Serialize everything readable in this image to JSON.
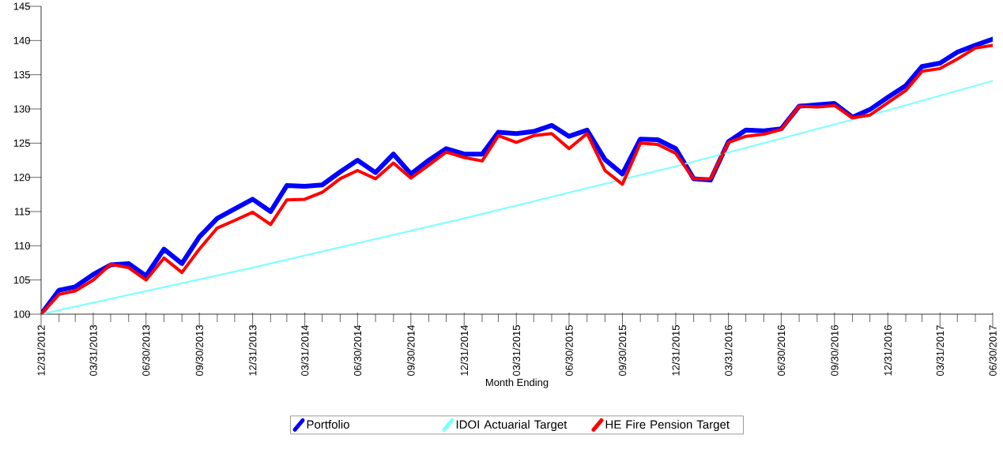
{
  "chart_data": {
    "type": "line",
    "xlabel": "Month Ending",
    "x": [
      "2012-12-31",
      "2013-01-31",
      "2013-02-28",
      "2013-03-31",
      "2013-04-30",
      "2013-05-31",
      "2013-06-30",
      "2013-07-31",
      "2013-08-31",
      "2013-09-30",
      "2013-10-31",
      "2013-11-30",
      "2013-12-31",
      "2014-01-31",
      "2014-02-28",
      "2014-03-31",
      "2014-04-30",
      "2014-05-31",
      "2014-06-30",
      "2014-07-31",
      "2014-08-31",
      "2014-09-30",
      "2014-10-31",
      "2014-11-30",
      "2014-12-31",
      "2015-01-31",
      "2015-02-28",
      "2015-03-31",
      "2015-04-30",
      "2015-05-31",
      "2015-06-30",
      "2015-07-31",
      "2015-08-31",
      "2015-09-30",
      "2015-10-31",
      "2015-11-30",
      "2015-12-31",
      "2016-01-31",
      "2016-02-29",
      "2016-03-31",
      "2016-04-30",
      "2016-05-31",
      "2016-06-30",
      "2016-07-31",
      "2016-08-31",
      "2016-09-30",
      "2016-10-31",
      "2016-11-30",
      "2016-12-31",
      "2017-01-31",
      "2017-02-28",
      "2017-03-31",
      "2017-04-30",
      "2017-05-31",
      "2017-06-30"
    ],
    "series": [
      {
        "name": "Portfolio",
        "color": "#0000ff",
        "values": [
          100,
          103.5,
          104,
          105.8,
          107.2,
          107.4,
          105.6,
          109.5,
          107.4,
          111.3,
          114,
          115.4,
          116.8,
          115,
          118.8,
          118.7,
          118.9,
          120.8,
          122.5,
          120.7,
          123.4,
          120.5,
          122.5,
          124.2,
          123.4,
          123.4,
          126.6,
          126.4,
          126.7,
          127.6,
          126,
          126.9,
          122.6,
          120.5,
          125.6,
          125.5,
          124.2,
          119.8,
          119.6,
          125.2,
          126.9,
          126.8,
          127.1,
          130.4,
          130.6,
          130.8,
          128.8,
          129.9,
          131.7,
          133.4,
          136.2,
          136.7,
          138.3,
          139.3,
          140.2
        ]
      },
      {
        "name": "IDOI Actuarial Target",
        "color": "#80ffff",
        "x": [
          "2012-12-31",
          "2013-12-31",
          "2014-12-31",
          "2015-12-31",
          "2016-12-31",
          "2017-06-30"
        ],
        "values": [
          100,
          106.8,
          114,
          121.6,
          129.8,
          134.1
        ]
      },
      {
        "name": "HE Fire Pension Target",
        "color": "#ff0000",
        "values": [
          100,
          102.9,
          103.4,
          105,
          107.3,
          106.8,
          105,
          108.2,
          106.1,
          109.5,
          112.6,
          113.7,
          114.9,
          113.1,
          116.7,
          116.8,
          117.8,
          119.8,
          121,
          119.8,
          122.1,
          119.9,
          121.8,
          123.7,
          122.9,
          122.4,
          126.1,
          125.1,
          126.1,
          126.4,
          124.2,
          126.4,
          121,
          119,
          125,
          124.8,
          123.5,
          119.8,
          119.8,
          125.1,
          126,
          126.3,
          127,
          130.4,
          130.3,
          130.5,
          128.7,
          129.1,
          130.9,
          132.7,
          135.5,
          135.9,
          137.3,
          138.9,
          139.3
        ]
      }
    ],
    "xlim": [
      "2012-12-31",
      "2017-06-30"
    ],
    "xticks": [
      {
        "value": "2012-12-31",
        "label": "12/31/2012"
      },
      {
        "value": "2013-01-31",
        "label": null
      },
      {
        "value": "2013-02-28",
        "label": null
      },
      {
        "value": "2013-03-31",
        "label": "03/31/2013"
      },
      {
        "value": "2013-04-30",
        "label": null
      },
      {
        "value": "2013-05-31",
        "label": null
      },
      {
        "value": "2013-06-30",
        "label": "06/30/2013"
      },
      {
        "value": "2013-07-31",
        "label": null
      },
      {
        "value": "2013-08-31",
        "label": null
      },
      {
        "value": "2013-09-30",
        "label": "09/30/2013"
      },
      {
        "value": "2013-10-31",
        "label": null
      },
      {
        "value": "2013-11-30",
        "label": null
      },
      {
        "value": "2013-12-31",
        "label": "12/31/2013"
      },
      {
        "value": "2014-01-31",
        "label": null
      },
      {
        "value": "2014-02-28",
        "label": null
      },
      {
        "value": "2014-03-31",
        "label": "03/31/2014"
      },
      {
        "value": "2014-04-30",
        "label": null
      },
      {
        "value": "2014-05-31",
        "label": null
      },
      {
        "value": "2014-06-30",
        "label": "06/30/2014"
      },
      {
        "value": "2014-07-31",
        "label": null
      },
      {
        "value": "2014-08-31",
        "label": null
      },
      {
        "value": "2014-09-30",
        "label": "09/30/2014"
      },
      {
        "value": "2014-10-31",
        "label": null
      },
      {
        "value": "2014-11-30",
        "label": null
      },
      {
        "value": "2014-12-31",
        "label": "12/31/2014"
      },
      {
        "value": "2015-01-31",
        "label": null
      },
      {
        "value": "2015-02-28",
        "label": null
      },
      {
        "value": "2015-03-31",
        "label": "03/31/2015"
      },
      {
        "value": "2015-04-30",
        "label": null
      },
      {
        "value": "2015-05-31",
        "label": null
      },
      {
        "value": "2015-06-30",
        "label": "06/30/2015"
      },
      {
        "value": "2015-07-31",
        "label": null
      },
      {
        "value": "2015-08-31",
        "label": null
      },
      {
        "value": "2015-09-30",
        "label": "09/30/2015"
      },
      {
        "value": "2015-10-31",
        "label": null
      },
      {
        "value": "2015-11-30",
        "label": null
      },
      {
        "value": "2015-12-31",
        "label": "12/31/2015"
      },
      {
        "value": "2016-01-31",
        "label": null
      },
      {
        "value": "2016-02-29",
        "label": null
      },
      {
        "value": "2016-03-31",
        "label": "03/31/2016"
      },
      {
        "value": "2016-04-30",
        "label": null
      },
      {
        "value": "2016-05-31",
        "label": null
      },
      {
        "value": "2016-06-30",
        "label": "06/30/2016"
      },
      {
        "value": "2016-07-31",
        "label": null
      },
      {
        "value": "2016-08-31",
        "label": null
      },
      {
        "value": "2016-09-30",
        "label": "09/30/2016"
      },
      {
        "value": "2016-10-31",
        "label": null
      },
      {
        "value": "2016-11-30",
        "label": null
      },
      {
        "value": "2016-12-31",
        "label": "12/31/2016"
      },
      {
        "value": "2017-01-31",
        "label": null
      },
      {
        "value": "2017-02-28",
        "label": null
      },
      {
        "value": "2017-03-31",
        "label": "03/31/2017"
      },
      {
        "value": "2017-04-30",
        "label": null
      },
      {
        "value": "2017-05-31",
        "label": null
      },
      {
        "value": "2017-06-30",
        "label": "06/30/2017"
      }
    ],
    "ylim": [
      100,
      145
    ],
    "yticks": [
      100,
      105,
      110,
      115,
      120,
      125,
      130,
      135,
      140,
      145
    ],
    "grid": false,
    "legend": "bottom",
    "marker": "none",
    "line_style": "solid"
  }
}
